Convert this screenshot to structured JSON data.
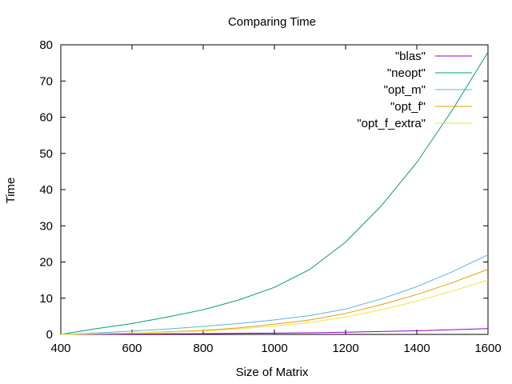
{
  "chart_data": {
    "type": "line",
    "title": "Comparing Time",
    "xlabel": "Size of Matrix",
    "ylabel": "Time",
    "xlim": [
      400,
      1600
    ],
    "ylim": [
      0,
      80
    ],
    "xticks": [
      400,
      600,
      800,
      1000,
      1200,
      1400,
      1600
    ],
    "yticks": [
      0,
      10,
      20,
      30,
      40,
      50,
      60,
      70,
      80
    ],
    "grid": false,
    "legend_position": "top-right",
    "x": [
      400,
      500,
      600,
      700,
      800,
      900,
      1000,
      1100,
      1200,
      1300,
      1400,
      1500,
      1600
    ],
    "series": [
      {
        "name": "\"blas\"",
        "color": "#9400d3",
        "values": [
          0.0,
          0.05,
          0.1,
          0.15,
          0.2,
          0.3,
          0.35,
          0.45,
          0.6,
          0.8,
          1.0,
          1.3,
          1.6
        ]
      },
      {
        "name": "\"neopt\"",
        "color": "#009e73",
        "values": [
          0.0,
          1.6,
          3.0,
          4.8,
          6.8,
          9.5,
          13.0,
          18.0,
          25.5,
          35.5,
          47.5,
          62.0,
          78.0
        ]
      },
      {
        "name": "\"opt_m\"",
        "color": "#56b4e9",
        "values": [
          0.0,
          0.4,
          0.9,
          1.5,
          2.2,
          3.0,
          4.0,
          5.2,
          7.0,
          9.8,
          13.2,
          17.3,
          22.0
        ]
      },
      {
        "name": "\"opt_f\"",
        "color": "#e69f00",
        "values": [
          0.0,
          0.2,
          0.4,
          0.7,
          1.1,
          1.8,
          2.8,
          4.0,
          5.8,
          8.2,
          11.0,
          14.3,
          18.0
        ]
      },
      {
        "name": "\"opt_f_extra\"",
        "color": "#f0e442",
        "values": [
          0.0,
          0.15,
          0.35,
          0.6,
          0.9,
          1.5,
          2.3,
          3.3,
          4.8,
          6.8,
          9.2,
          12.0,
          15.0
        ]
      }
    ]
  }
}
